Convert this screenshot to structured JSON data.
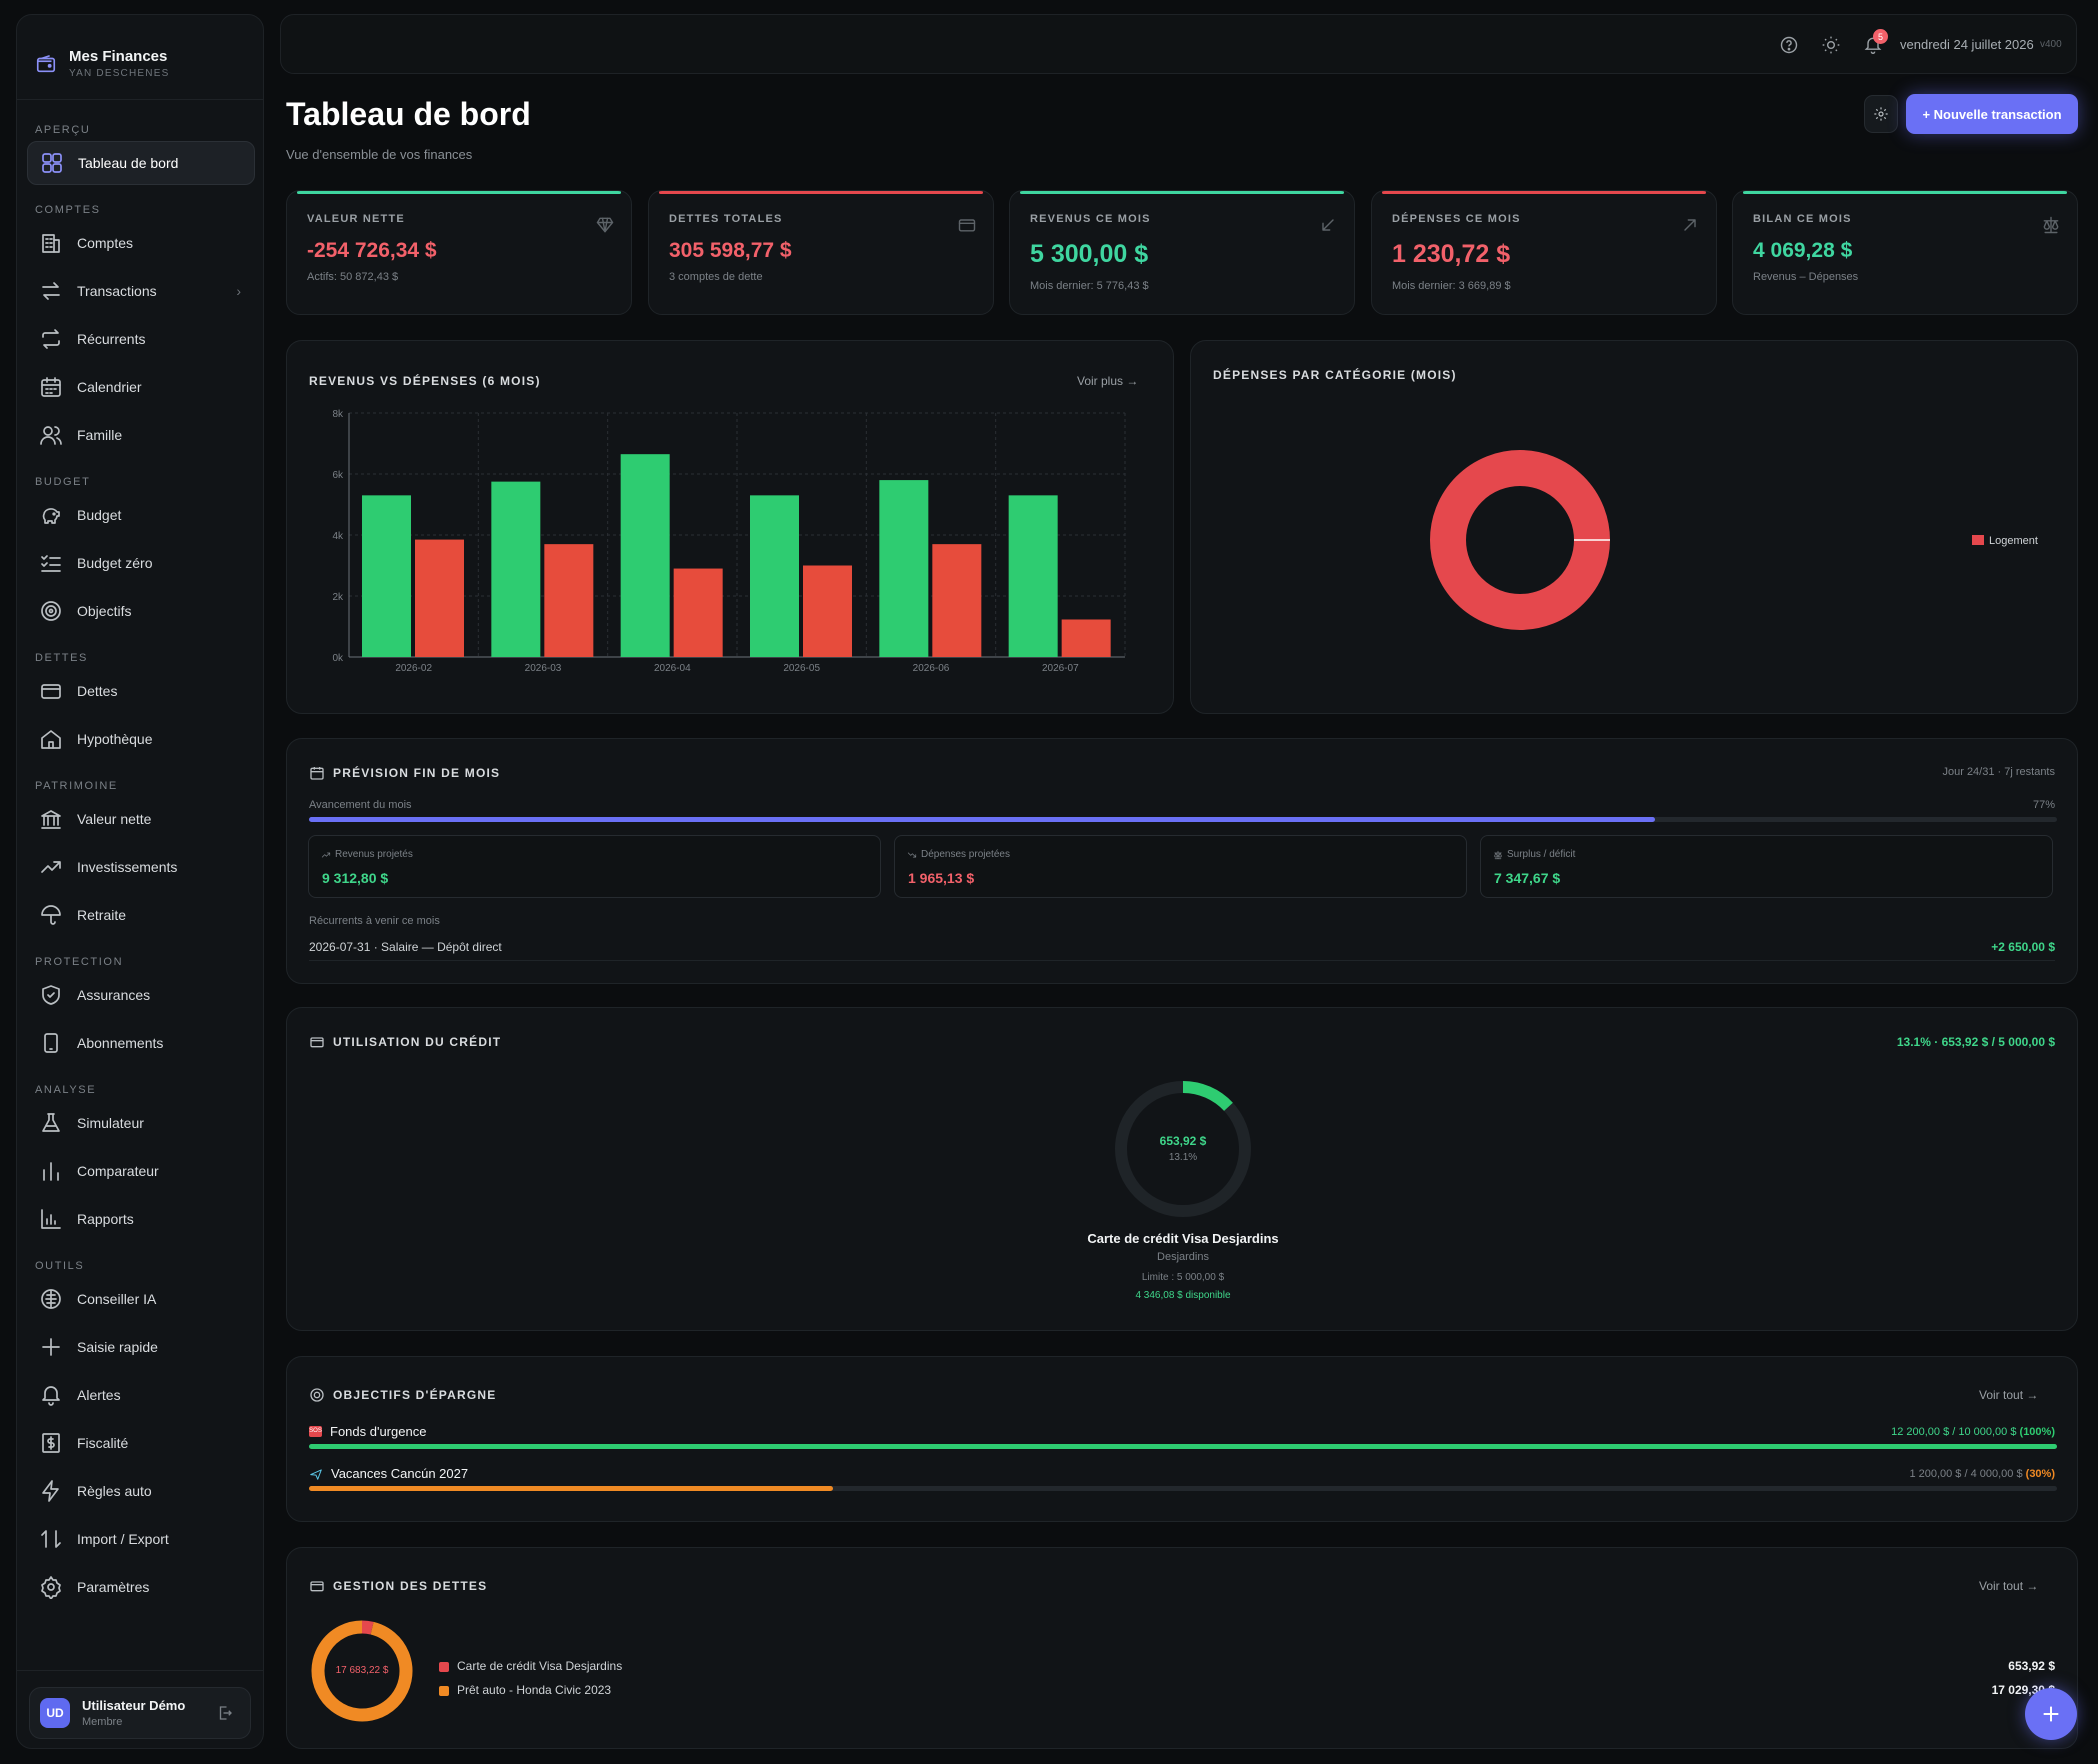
{
  "app": {
    "name": "Mes Finances",
    "user_caption": "YAN DESCHENES"
  },
  "sidebar": {
    "sections": [
      {
        "title": "APERÇU",
        "items": [
          {
            "label": "Tableau de bord",
            "icon": "dashboard-icon",
            "active": true
          }
        ]
      },
      {
        "title": "COMPTES",
        "items": [
          {
            "label": "Comptes",
            "icon": "building-icon"
          },
          {
            "label": "Transactions",
            "icon": "arrows-swap-icon",
            "chevron": true
          },
          {
            "label": "Récurrents",
            "icon": "repeat-icon"
          },
          {
            "label": "Calendrier",
            "icon": "calendar-icon"
          },
          {
            "label": "Famille",
            "icon": "users-icon"
          }
        ]
      },
      {
        "title": "BUDGET",
        "items": [
          {
            "label": "Budget",
            "icon": "piggy-bank-icon"
          },
          {
            "label": "Budget zéro",
            "icon": "checklist-icon"
          },
          {
            "label": "Objectifs",
            "icon": "target-icon"
          }
        ]
      },
      {
        "title": "DETTES",
        "items": [
          {
            "label": "Dettes",
            "icon": "credit-card-icon"
          },
          {
            "label": "Hypothèque",
            "icon": "house-icon"
          }
        ]
      },
      {
        "title": "PATRIMOINE",
        "items": [
          {
            "label": "Valeur nette",
            "icon": "bank-icon"
          },
          {
            "label": "Investissements",
            "icon": "trending-up-icon"
          },
          {
            "label": "Retraite",
            "icon": "umbrella-icon"
          }
        ]
      },
      {
        "title": "PROTECTION",
        "items": [
          {
            "label": "Assurances",
            "icon": "shield-icon"
          },
          {
            "label": "Abonnements",
            "icon": "phone-icon"
          }
        ]
      },
      {
        "title": "ANALYSE",
        "items": [
          {
            "label": "Simulateur",
            "icon": "flask-icon"
          },
          {
            "label": "Comparateur",
            "icon": "bar-chart-icon"
          },
          {
            "label": "Rapports",
            "icon": "report-chart-icon"
          }
        ]
      },
      {
        "title": "OUTILS",
        "items": [
          {
            "label": "Conseiller IA",
            "icon": "brain-icon"
          },
          {
            "label": "Saisie rapide",
            "icon": "plus-icon"
          },
          {
            "label": "Alertes",
            "icon": "bell-icon"
          },
          {
            "label": "Fiscalité",
            "icon": "tax-icon"
          },
          {
            "label": "Règles auto",
            "icon": "bolt-icon"
          },
          {
            "label": "Import / Export",
            "icon": "import-export-icon"
          },
          {
            "label": "Paramètres",
            "icon": "gear-icon"
          }
        ]
      }
    ],
    "user": {
      "initials": "UD",
      "name": "Utilisateur Démo",
      "role": "Membre"
    }
  },
  "topbar": {
    "notifications": "5",
    "date": "vendredi 24 juillet 2026",
    "version": "v400"
  },
  "header": {
    "title": "Tableau de bord",
    "subtitle": "Vue d'ensemble de vos finances",
    "new_button": "+ Nouvelle transaction"
  },
  "kpis": [
    {
      "label": "VALEUR NETTE",
      "value": "-254 726,34 $",
      "sub": "Actifs: 50 872,43 $",
      "color": "#f2616a",
      "accent": "#3fd6a0",
      "icon": "diamond-icon"
    },
    {
      "label": "DETTES TOTALES",
      "value": "305 598,77 $",
      "sub": "3 comptes de dette",
      "color": "#f2616a",
      "accent": "#e5484d",
      "icon": "credit-card-icon"
    },
    {
      "label": "REVENUS CE MOIS",
      "value": "5 300,00 $",
      "sub": "Mois dernier: 5 776,43 $",
      "color": "#3fd6a0",
      "accent": "#3fd6a0",
      "icon": "arrow-down-left-icon"
    },
    {
      "label": "DÉPENSES CE MOIS",
      "value": "1 230,72 $",
      "sub": "Mois dernier: 3 669,89 $",
      "color": "#f2616a",
      "accent": "#e5484d",
      "icon": "arrow-up-right-icon"
    },
    {
      "label": "BILAN CE MOIS",
      "value": "4 069,28 $",
      "sub": "Revenus – Dépenses",
      "color": "#3fd6a0",
      "accent": "#3fd6a0",
      "icon": "scale-icon"
    }
  ],
  "revenue_chart": {
    "title": "REVENUS VS DÉPENSES (6 MOIS)",
    "link": "Voir plus →"
  },
  "category_chart": {
    "title": "DÉPENSES PAR CATÉGORIE (MOIS)"
  },
  "chart_data": [
    {
      "type": "bar",
      "title": "REVENUS VS DÉPENSES (6 MOIS)",
      "categories": [
        "2026-02",
        "2026-03",
        "2026-04",
        "2026-05",
        "2026-06",
        "2026-07"
      ],
      "series": [
        {
          "color": "#2ecc71",
          "values": [
            5300,
            5750,
            6650,
            5300,
            5800,
            5300
          ]
        },
        {
          "color": "#e74c3c",
          "values": [
            3850,
            3700,
            2900,
            3000,
            3700,
            1230
          ]
        }
      ],
      "ylim": [
        0,
        8000
      ],
      "yticks": [
        "0k",
        "2k",
        "4k",
        "6k",
        "8k"
      ],
      "grid": true
    },
    {
      "type": "pie",
      "title": "DÉPENSES PAR CATÉGORIE (MOIS)",
      "labels": [
        "Logement"
      ],
      "values": [
        1230.72
      ],
      "colors": [
        "#e5484d"
      ],
      "legend": "right"
    },
    {
      "type": "pie",
      "title": "UTILISATION DU CRÉDIT",
      "labels": [
        "Carte de crédit Visa Desjardins"
      ],
      "values": [
        13.1
      ],
      "colors": [
        "#2ecc71"
      ]
    },
    {
      "type": "pie",
      "title": "GESTION DES DETTES",
      "labels": [
        "Carte de crédit Visa Desjardins",
        "Prêt auto - Honda Civic 2023"
      ],
      "values": [
        653.92,
        17029.3
      ],
      "colors": [
        "#e5484d",
        "#f08a24"
      ],
      "legend": "right"
    }
  ],
  "forecast": {
    "title": "PRÉVISION FIN DE MOIS",
    "day_info": "Jour 24/31 · 7j restants",
    "progress_label": "Avancement du mois",
    "progress_pct": "77%",
    "progress": 0.77,
    "boxes": [
      {
        "label": "Revenus projetés",
        "value": "9 312,80 $",
        "color": "#3fd68a",
        "icon": "trending-up-icon"
      },
      {
        "label": "Dépenses projetées",
        "value": "1 965,13 $",
        "color": "#f2616a",
        "icon": "trending-down-icon"
      },
      {
        "label": "Surplus / déficit",
        "value": "7 347,67 $",
        "color": "#3fd68a",
        "icon": "scale-icon"
      }
    ],
    "recurring_label": "Récurrents à venir ce mois",
    "recurring": [
      {
        "text": "2026-07-31 · Salaire — Dépôt direct",
        "amount": "+2 650,00 $"
      }
    ]
  },
  "credit": {
    "title": "UTILISATION DU CRÉDIT",
    "summary": "13.1% · 653,92 $ / 5 000,00 $",
    "amount": "653,92 $",
    "pct": "13.1%",
    "card_name": "Carte de crédit Visa Desjardins",
    "institution": "Desjardins",
    "limit": "Limite : 5 000,00 $",
    "available": "4 346,08 $ disponible"
  },
  "savings": {
    "title": "OBJECTIFS D'ÉPARGNE",
    "link": "Voir tout →",
    "goals": [
      {
        "name": "Fonds d'urgence",
        "amounts": "12 200,00 $ / 10 000,00 $",
        "pct": "(100%)",
        "progress": 1.0,
        "color": "#2ecc71",
        "icon": "sos-icon"
      },
      {
        "name": "Vacances Cancún 2027",
        "amounts": "1 200,00 $ / 4 000,00 $",
        "pct": "(30%)",
        "progress": 0.3,
        "color": "#f08a24",
        "icon": "airplane-icon"
      }
    ]
  },
  "debts": {
    "title": "GESTION DES DETTES",
    "link": "Voir tout →",
    "total": "17 683,22 $",
    "items": [
      {
        "name": "Carte de crédit Visa Desjardins",
        "amount": "653,92 $",
        "color": "#e5484d"
      },
      {
        "name": "Prêt auto - Honda Civic 2023",
        "amount": "17 029,30 $",
        "color": "#f08a24"
      }
    ]
  }
}
